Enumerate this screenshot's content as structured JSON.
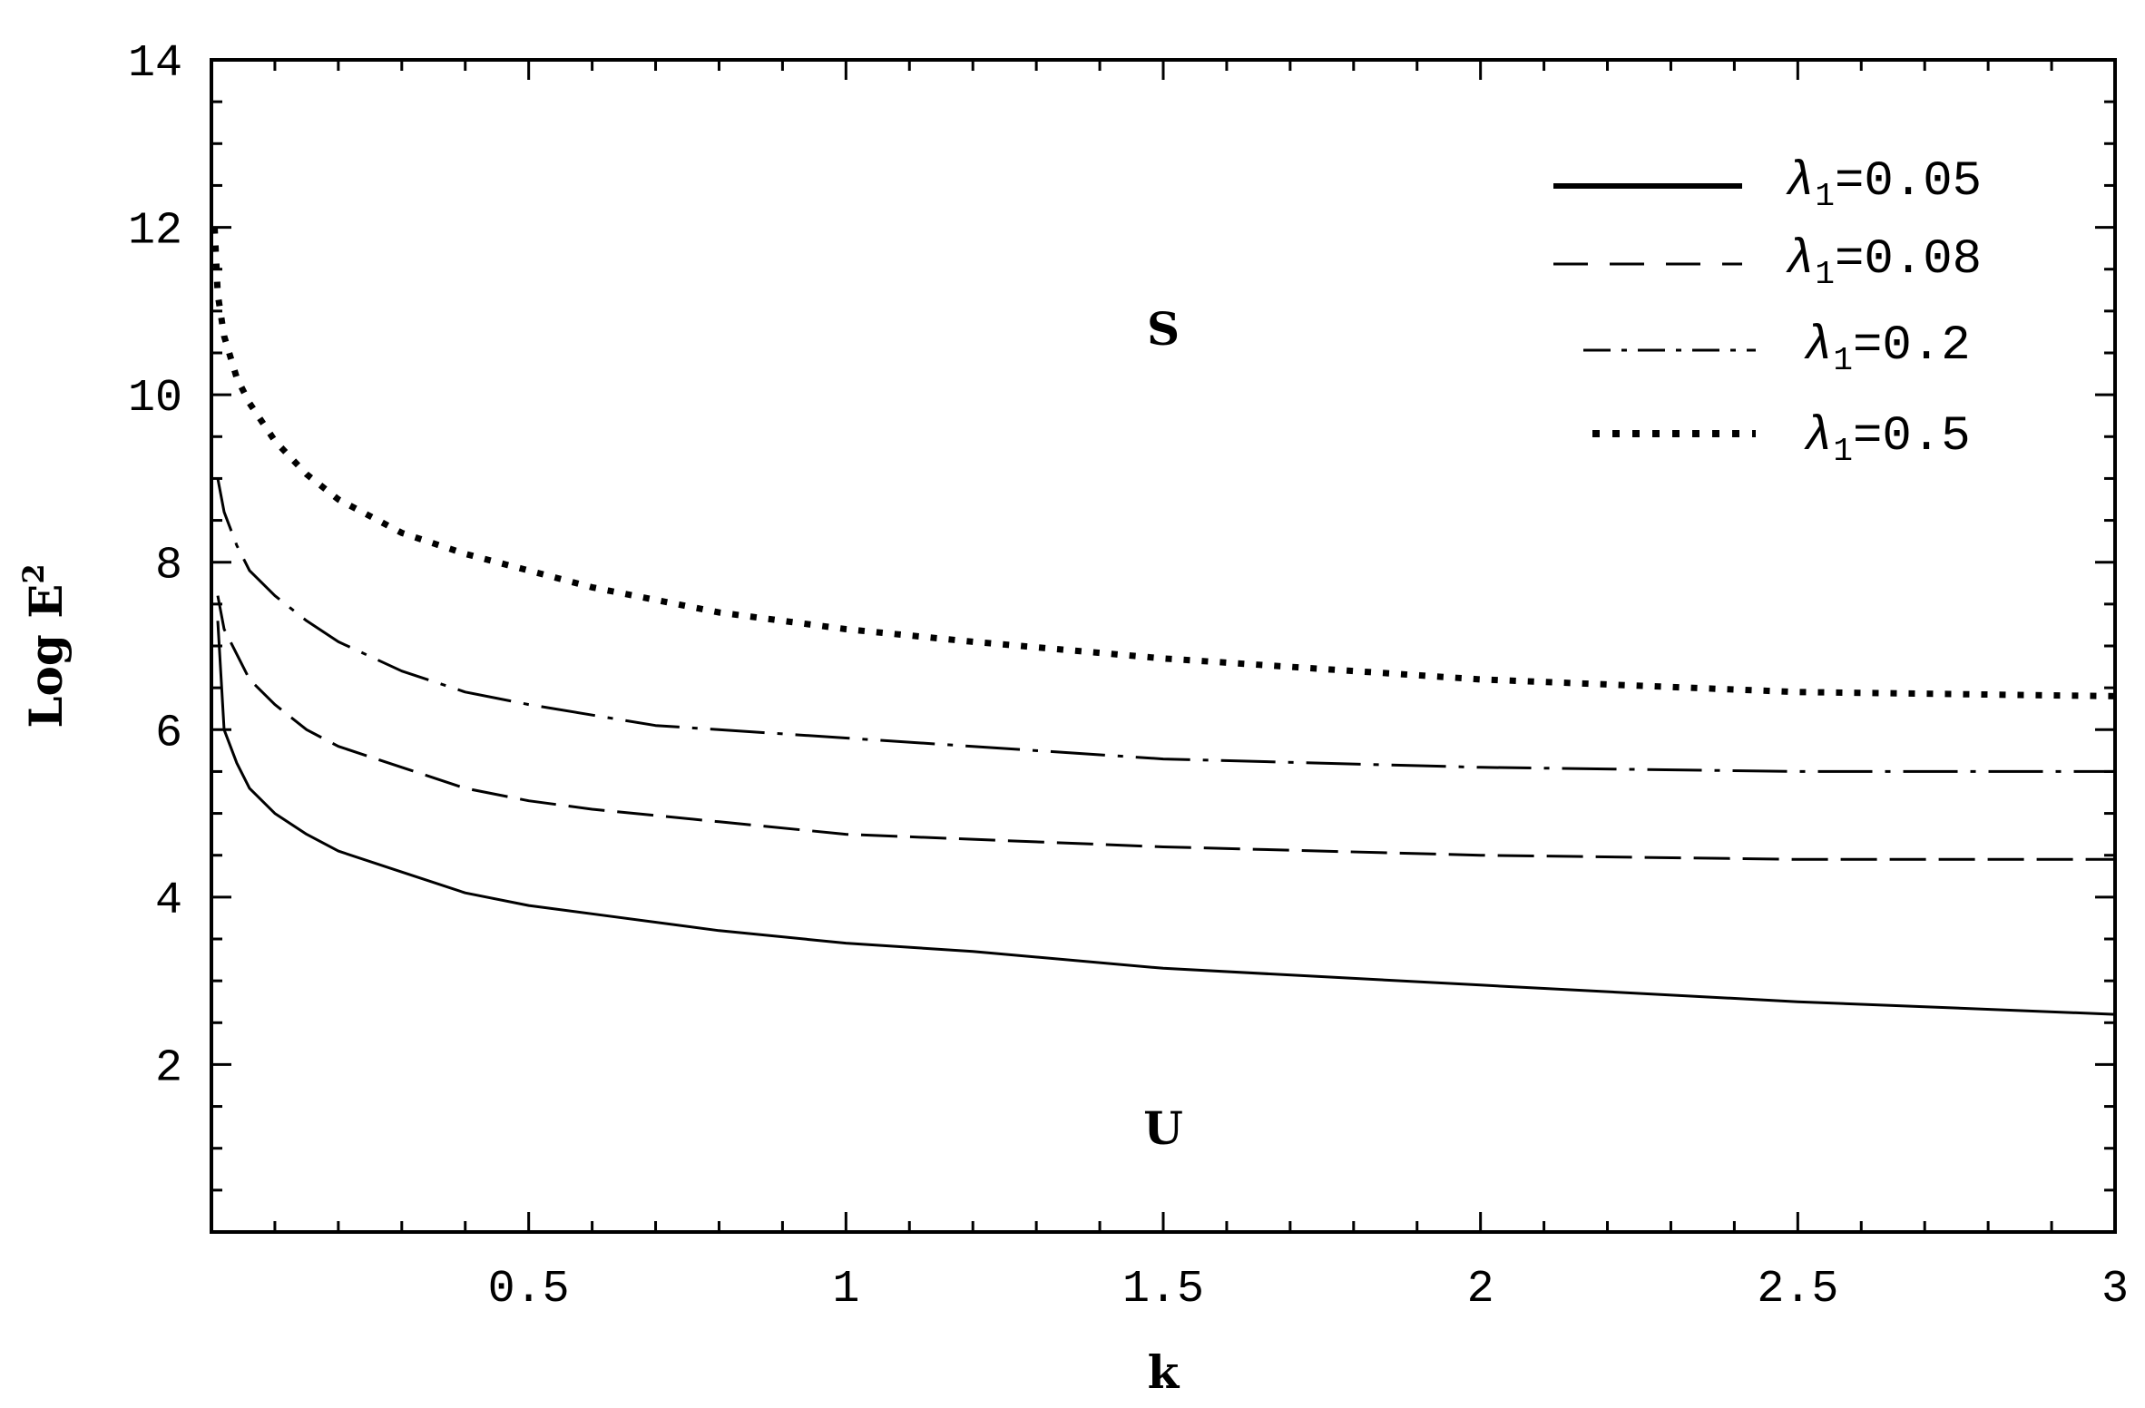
{
  "chart_data": {
    "type": "line",
    "title": "",
    "xlabel": "k",
    "ylabel": "Log E",
    "ylabel_superscript": "2",
    "xlim": [
      0,
      3
    ],
    "ylim": [
      0,
      14
    ],
    "xticks": [
      0.5,
      1,
      1.5,
      2,
      2.5,
      3
    ],
    "xtick_labels": [
      "0.5",
      "1",
      "1.5",
      "2",
      "2.5",
      "3"
    ],
    "yticks": [
      2,
      4,
      6,
      8,
      10,
      12,
      14
    ],
    "ytick_labels": [
      "2",
      "4",
      "6",
      "8",
      "10",
      "12",
      "14"
    ],
    "grid": false,
    "legend_position": "top-right",
    "annotations": [
      {
        "text": "S",
        "x": 1.5,
        "y": 10.6
      },
      {
        "text": "U",
        "x": 1.5,
        "y": 1.05
      }
    ],
    "series": [
      {
        "name": "0.05",
        "style": "solid",
        "points": [
          [
            0.01,
            7.3
          ],
          [
            0.02,
            6.0
          ],
          [
            0.04,
            5.6
          ],
          [
            0.06,
            5.3
          ],
          [
            0.1,
            5.0
          ],
          [
            0.15,
            4.75
          ],
          [
            0.2,
            4.55
          ],
          [
            0.3,
            4.3
          ],
          [
            0.4,
            4.05
          ],
          [
            0.5,
            3.9
          ],
          [
            0.6,
            3.8
          ],
          [
            0.8,
            3.6
          ],
          [
            1.0,
            3.45
          ],
          [
            1.2,
            3.35
          ],
          [
            1.5,
            3.15
          ],
          [
            2.0,
            2.95
          ],
          [
            2.5,
            2.75
          ],
          [
            3.0,
            2.6
          ]
        ]
      },
      {
        "name": "0.08",
        "style": "dashed",
        "points": [
          [
            0.01,
            7.6
          ],
          [
            0.02,
            7.2
          ],
          [
            0.04,
            6.9
          ],
          [
            0.06,
            6.6
          ],
          [
            0.1,
            6.3
          ],
          [
            0.15,
            6.0
          ],
          [
            0.2,
            5.8
          ],
          [
            0.3,
            5.55
          ],
          [
            0.4,
            5.3
          ],
          [
            0.5,
            5.15
          ],
          [
            0.6,
            5.05
          ],
          [
            0.8,
            4.9
          ],
          [
            1.0,
            4.75
          ],
          [
            1.5,
            4.6
          ],
          [
            2.0,
            4.5
          ],
          [
            2.5,
            4.45
          ],
          [
            3.0,
            4.45
          ]
        ]
      },
      {
        "name": "0.2",
        "style": "dashdot",
        "points": [
          [
            0.01,
            9.0
          ],
          [
            0.02,
            8.6
          ],
          [
            0.04,
            8.2
          ],
          [
            0.06,
            7.9
          ],
          [
            0.1,
            7.6
          ],
          [
            0.15,
            7.3
          ],
          [
            0.2,
            7.05
          ],
          [
            0.3,
            6.7
          ],
          [
            0.4,
            6.45
          ],
          [
            0.5,
            6.3
          ],
          [
            0.7,
            6.05
          ],
          [
            1.0,
            5.9
          ],
          [
            1.5,
            5.65
          ],
          [
            2.0,
            5.55
          ],
          [
            2.5,
            5.5
          ],
          [
            3.0,
            5.5
          ]
        ]
      },
      {
        "name": "0.5",
        "style": "dotted",
        "points": [
          [
            0.005,
            12.0
          ],
          [
            0.01,
            11.2
          ],
          [
            0.02,
            10.7
          ],
          [
            0.04,
            10.2
          ],
          [
            0.06,
            9.9
          ],
          [
            0.1,
            9.45
          ],
          [
            0.15,
            9.05
          ],
          [
            0.2,
            8.75
          ],
          [
            0.3,
            8.35
          ],
          [
            0.4,
            8.1
          ],
          [
            0.5,
            7.9
          ],
          [
            0.6,
            7.7
          ],
          [
            0.8,
            7.4
          ],
          [
            1.0,
            7.2
          ],
          [
            1.2,
            7.05
          ],
          [
            1.5,
            6.85
          ],
          [
            2.0,
            6.6
          ],
          [
            2.5,
            6.45
          ],
          [
            3.0,
            6.4
          ]
        ]
      }
    ],
    "legend": [
      {
        "symbol": "λ",
        "subscript": "1",
        "value_text": "=0.05",
        "style": "solid"
      },
      {
        "symbol": "λ",
        "subscript": "1",
        "value_text": "=0.08",
        "style": "dashed"
      },
      {
        "symbol": "λ",
        "subscript": "1",
        "value_text": "=0.2",
        "style": "dashdot"
      },
      {
        "symbol": "λ",
        "subscript": "1",
        "value_text": "=0.5",
        "style": "dotted"
      }
    ]
  }
}
